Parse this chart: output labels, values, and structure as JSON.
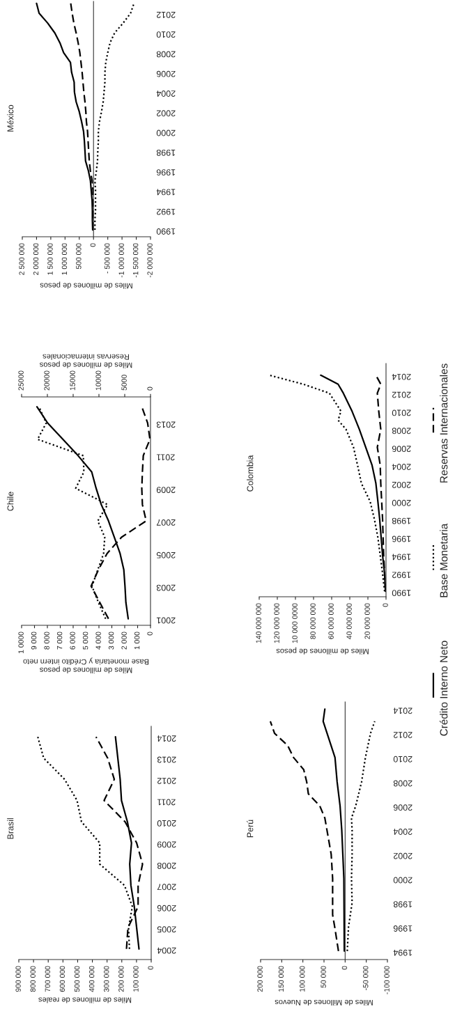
{
  "chart_data": [
    {
      "type": "line",
      "title": "México",
      "xlabel": "Miles de millones de pesos",
      "ylim": [
        1989.3,
        2013.2
      ],
      "yticks": [
        1990,
        1992,
        1994,
        1996,
        1998,
        2000,
        2002,
        2004,
        2006,
        2008,
        2010,
        2012
      ],
      "xlim": [
        2500000,
        -2000000
      ],
      "xticks": [
        {
          "value": 2500000,
          "label": "2 500 000"
        },
        {
          "value": 2000000,
          "label": "2 000 000"
        },
        {
          "value": 1500000,
          "label": "1 500 000"
        },
        {
          "value": 1000000,
          "label": "1 000 000"
        },
        {
          "value": 500000,
          "label": "500 000"
        },
        0,
        {
          "value": -500000,
          "label": "- 500 000"
        },
        {
          "value": -1000000,
          "label": "-1 000 000"
        },
        {
          "value": -1500000,
          "label": "-1 500 000"
        },
        {
          "value": -2000000,
          "label": "-2 000 000"
        }
      ],
      "series": [
        {
          "color": "#000000",
          "line_style": "solid",
          "values": [
            1990,
            1991,
            1992,
            1993,
            1994,
            1995,
            1996,
            1997,
            1998,
            1999,
            2000,
            2001,
            2002,
            2003,
            2004,
            2005,
            2006,
            2007,
            2008,
            2009,
            2010,
            2011,
            2012,
            2013
          ],
          "x": [
            30000,
            40000,
            40000,
            50000,
            80000,
            110000,
            180000,
            280000,
            300000,
            320000,
            350000,
            420000,
            500000,
            610000,
            670000,
            680000,
            770000,
            810000,
            1050000,
            1180000,
            1360000,
            1610000,
            1910000,
            2000000
          ]
        },
        {
          "color": "#000000",
          "line_style": "dotted",
          "values": [
            1990,
            1991,
            1992,
            1993,
            1994,
            1995,
            1996,
            1997,
            1998,
            1999,
            2000,
            2001,
            2002,
            2003,
            2004,
            2005,
            2006,
            2007,
            2008,
            2009,
            2010,
            2011,
            2012,
            2013
          ],
          "x": [
            -50000,
            -50000,
            -70000,
            -70000,
            -70000,
            -50000,
            -100000,
            -140000,
            -150000,
            -170000,
            -170000,
            -210000,
            -280000,
            -340000,
            -370000,
            -400000,
            -400000,
            -430000,
            -500000,
            -580000,
            -740000,
            -1040000,
            -1300000,
            -1420000
          ]
        },
        {
          "color": "#000000",
          "line_style": "dashed",
          "values": [
            1990,
            1991,
            1992,
            1993,
            1994,
            1995,
            1996,
            1997,
            1998,
            1999,
            2000,
            2001,
            2002,
            2003,
            2004,
            2005,
            2006,
            2007,
            2008,
            2009,
            2010,
            2011,
            2012,
            2013
          ],
          "x": [
            20000,
            20000,
            25000,
            30000,
            20000,
            50000,
            110000,
            150000,
            170000,
            190000,
            210000,
            250000,
            270000,
            300000,
            340000,
            370000,
            400000,
            440000,
            480000,
            540000,
            610000,
            690000,
            750000,
            800000
          ]
        }
      ]
    },
    {
      "type": "line",
      "title": "Chile",
      "xlabel": "Miles de millones de pesos\nBase monetaria y Crédito intern neto",
      "x2label": "Miles de millones de pesos\nReservas internacionales",
      "ylim": [
        2000.6,
        2014.6
      ],
      "yticks": [
        2001,
        2003,
        2005,
        2007,
        2009,
        2011,
        2013
      ],
      "xlim": [
        10000,
        0
      ],
      "xticks": [
        {
          "value": 10000,
          "label": "1 0000"
        },
        {
          "value": 9000,
          "label": "9 000"
        },
        {
          "value": 8000,
          "label": "8 000"
        },
        {
          "value": 7000,
          "label": "7 000"
        },
        {
          "value": 6000,
          "label": "6 000"
        },
        {
          "value": 5000,
          "label": "5 000"
        },
        {
          "value": 4000,
          "label": "4 000"
        },
        {
          "value": 3000,
          "label": "3 000"
        },
        {
          "value": 2000,
          "label": "2 000"
        },
        {
          "value": 1000,
          "label": "1 000"
        },
        0
      ],
      "x2lim": [
        25000,
        0
      ],
      "x2ticks": [
        25000,
        20000,
        15000,
        10000,
        5000,
        0
      ],
      "series": [
        {
          "color": "#000000",
          "line_style": "solid",
          "values": [
            2001,
            2002,
            2003,
            2004,
            2005,
            2006,
            2007,
            2008,
            2009,
            2010,
            2011,
            2012,
            2013,
            2014
          ],
          "x": [
            1730,
            1910,
            1980,
            2070,
            2360,
            2810,
            3260,
            3820,
            4220,
            4560,
            5620,
            6790,
            7980,
            8810
          ]
        },
        {
          "color": "#000000",
          "line_style": "dotted",
          "values": [
            2001,
            2002,
            2003,
            2004,
            2005,
            2006,
            2007,
            2008,
            2009,
            2010,
            2011,
            2012,
            2013,
            2014
          ],
          "x": [
            3480,
            4040,
            4540,
            4090,
            3640,
            3550,
            4090,
            3330,
            5800,
            5170,
            5210,
            8760,
            8090,
            8650
          ]
        },
        {
          "color": "#000000",
          "line_style": "dashed",
          "axis": "x2",
          "values": [
            2001,
            2002,
            2003,
            2004,
            2005,
            2006,
            2007,
            2008,
            2009,
            2010,
            2011,
            2012,
            2013,
            2014
          ],
          "x": [
            8150,
            9830,
            11520,
            10110,
            8430,
            5620,
            840,
            1570,
            1690,
            1570,
            1400,
            110,
            560,
            1690
          ]
        }
      ]
    },
    {
      "type": "line",
      "title": "Colombia",
      "xlabel": "Miles de millones de pesos",
      "ylim": [
        1989.4,
        2015.3
      ],
      "yticks": [
        1990,
        1992,
        1994,
        1996,
        1998,
        2000,
        2002,
        2004,
        2006,
        2008,
        2010,
        2012,
        2014
      ],
      "xlim": [
        140000000,
        0
      ],
      "xticks": [
        {
          "value": 140000000,
          "label": "140 000 000"
        },
        {
          "value": 120000000,
          "label": "120 000 000"
        },
        {
          "value": 100000000,
          "label": "10 000 0000"
        },
        {
          "value": 80000000,
          "label": "80 000 000"
        },
        {
          "value": 60000000,
          "label": "60 000 000"
        },
        {
          "value": 40000000,
          "label": "40 000 000"
        },
        {
          "value": 20000000,
          "label": "20 000 000"
        },
        0
      ],
      "series": [
        {
          "color": "#000000",
          "line_style": "solid",
          "values": [
            1990,
            1992,
            1994,
            1996,
            1998,
            2000,
            2002,
            2004,
            2006,
            2008,
            2010,
            2012,
            2013,
            2014
          ],
          "x": [
            600000,
            1600000,
            3800000,
            5400000,
            7000000,
            9000000,
            11200000,
            15400000,
            22400000,
            29500000,
            37500000,
            47100000,
            52900000,
            72100000
          ]
        },
        {
          "color": "#000000",
          "line_style": "dotted",
          "values": [
            1990,
            1992,
            1994,
            1996,
            1998,
            2000,
            2002,
            2004,
            2006,
            2008,
            2009,
            2010,
            2012,
            2013,
            2014
          ],
          "x": [
            1600000,
            3800000,
            6400000,
            9000000,
            12800000,
            17600000,
            27200000,
            31400000,
            35900000,
            44200000,
            52900000,
            49700000,
            62500000,
            91300000,
            128800000
          ]
        },
        {
          "color": "#000000",
          "line_style": "dashed",
          "values": [
            1990,
            1992,
            1994,
            1996,
            1998,
            2000,
            2002,
            2004,
            2006,
            2008,
            2010,
            2012,
            2013,
            2014
          ],
          "x": [
            600000,
            1600000,
            2600000,
            3200000,
            3800000,
            4800000,
            5800000,
            6400000,
            9600000,
            5800000,
            8000000,
            9600000,
            5800000,
            11200000
          ]
        }
      ]
    },
    {
      "type": "line",
      "title": "Brasil",
      "xlabel": "Miles de millones de reales",
      "ylim": [
        2003.5,
        2014.5
      ],
      "yticks": [
        2004,
        2005,
        2006,
        2007,
        2008,
        2009,
        2010,
        2011,
        2012,
        2013,
        2014
      ],
      "xlim": [
        900000,
        0
      ],
      "xticks": [
        {
          "value": 900000,
          "label": "900 000"
        },
        {
          "value": 800000,
          "label": "800 000"
        },
        {
          "value": 700000,
          "label": "700 000"
        },
        {
          "value": 600000,
          "label": "600 000"
        },
        {
          "value": 500000,
          "label": "500 000"
        },
        {
          "value": 400000,
          "label": "400 000"
        },
        {
          "value": 300000,
          "label": "300 000"
        },
        {
          "value": 200000,
          "label": "200 000"
        },
        {
          "value": 100000,
          "label": "100 000"
        },
        0
      ],
      "series": [
        {
          "color": "#000000",
          "line_style": "solid",
          "values": [
            2004,
            2005,
            2006,
            2007,
            2008,
            2009,
            2010,
            2011,
            2012,
            2013,
            2014
          ],
          "x": [
            83000,
            99000,
            115000,
            138000,
            146000,
            134000,
            162000,
            202000,
            211000,
            227000,
            243000
          ]
        },
        {
          "color": "#000000",
          "line_style": "dotted",
          "values": [
            2004,
            2005,
            2006,
            2007,
            2008,
            2009,
            2010,
            2011,
            2012,
            2013,
            2014
          ],
          "x": [
            148000,
            154000,
            128000,
            182000,
            350000,
            350000,
            474000,
            504000,
            589000,
            731000,
            771000
          ]
        },
        {
          "color": "#000000",
          "line_style": "dashed",
          "values": [
            2004,
            2005,
            2006,
            2007,
            2008,
            2009,
            2010,
            2011,
            2012,
            2013,
            2014
          ],
          "x": [
            168000,
            158000,
            89000,
            89000,
            59000,
            99000,
            178000,
            320000,
            251000,
            296000,
            375000
          ]
        }
      ]
    },
    {
      "type": "line",
      "title": "Perú",
      "xlabel": "Miles de Millones de Nuevos",
      "legend": "right",
      "ylim": [
        1993.3,
        2014.6
      ],
      "yticks": [
        1994,
        1996,
        1998,
        2000,
        2002,
        2004,
        2006,
        2008,
        2010,
        2012,
        2014
      ],
      "xlim": [
        200000,
        -100000
      ],
      "xticks": [
        {
          "value": 200000,
          "label": "200 000"
        },
        {
          "value": 150000,
          "label": "150 000"
        },
        {
          "value": 100000,
          "label": "100 000"
        },
        {
          "value": 50000,
          "label": "50 000"
        },
        0,
        {
          "value": -50000,
          "label": "-50 000"
        },
        {
          "value": -100000,
          "label": "-100 000"
        }
      ],
      "series": [
        {
          "name": "Crédito Interno Neto",
          "color": "#000000",
          "line_style": "solid",
          "values": [
            1994,
            2000,
            2004,
            2006,
            2008,
            2010,
            2013,
            2014
          ],
          "x": [
            2000,
            3000,
            8000,
            12000,
            19000,
            24000,
            52000,
            48000
          ]
        },
        {
          "name": "Base Monetaria",
          "color": "#000000",
          "line_style": "dotted",
          "values": [
            1994,
            1996,
            1998,
            2000,
            2002,
            2004,
            2005,
            2006,
            2008,
            2010,
            2012,
            2013
          ],
          "x": [
            -5000,
            -8000,
            -16500,
            -15000,
            -16500,
            -16500,
            -15000,
            -25000,
            -39000,
            -48000,
            -60000,
            -70000
          ]
        },
        {
          "name": "Reservas Internacionales",
          "color": "#000000",
          "line_style": "dashed",
          "values": [
            1994,
            1996,
            1997,
            2000,
            2002,
            2004,
            2005,
            2006,
            2007,
            2008,
            2009,
            2010,
            2011,
            2012,
            2013
          ],
          "x": [
            15800,
            24700,
            29600,
            29600,
            33000,
            43000,
            48000,
            60000,
            87000,
            91000,
            98000,
            122000,
            136000,
            167000,
            177000
          ]
        }
      ]
    }
  ]
}
